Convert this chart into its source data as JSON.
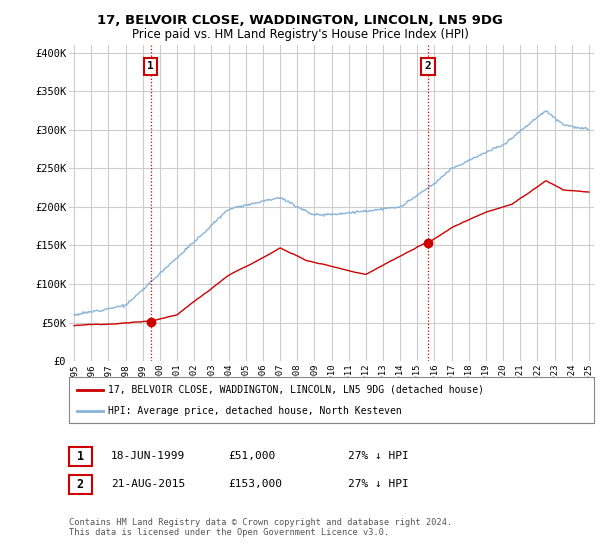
{
  "title": "17, BELVOIR CLOSE, WADDINGTON, LINCOLN, LN5 9DG",
  "subtitle": "Price paid vs. HM Land Registry's House Price Index (HPI)",
  "ylabel_ticks": [
    "£0",
    "£50K",
    "£100K",
    "£150K",
    "£200K",
    "£250K",
    "£300K",
    "£350K",
    "£400K"
  ],
  "ytick_vals": [
    0,
    50000,
    100000,
    150000,
    200000,
    250000,
    300000,
    350000,
    400000
  ],
  "ylim": [
    0,
    410000
  ],
  "xlim_left": 1994.7,
  "xlim_right": 2025.3,
  "legend_line1": "17, BELVOIR CLOSE, WADDINGTON, LINCOLN, LN5 9DG (detached house)",
  "legend_line2": "HPI: Average price, detached house, North Kesteven",
  "marker1_date": "18-JUN-1999",
  "marker1_price": "£51,000",
  "marker1_hpi": "27% ↓ HPI",
  "marker2_date": "21-AUG-2015",
  "marker2_price": "£153,000",
  "marker2_hpi": "27% ↓ HPI",
  "footer": "Contains HM Land Registry data © Crown copyright and database right 2024.\nThis data is licensed under the Open Government Licence v3.0.",
  "red_color": "#cc0000",
  "blue_color": "#89b4d9",
  "vline_color": "#cc0000",
  "background_color": "#ffffff",
  "grid_color": "#cccccc",
  "sale1_year": 1999.46,
  "sale2_year": 2015.63,
  "marker1_price_val": 51000,
  "marker2_price_val": 153000
}
